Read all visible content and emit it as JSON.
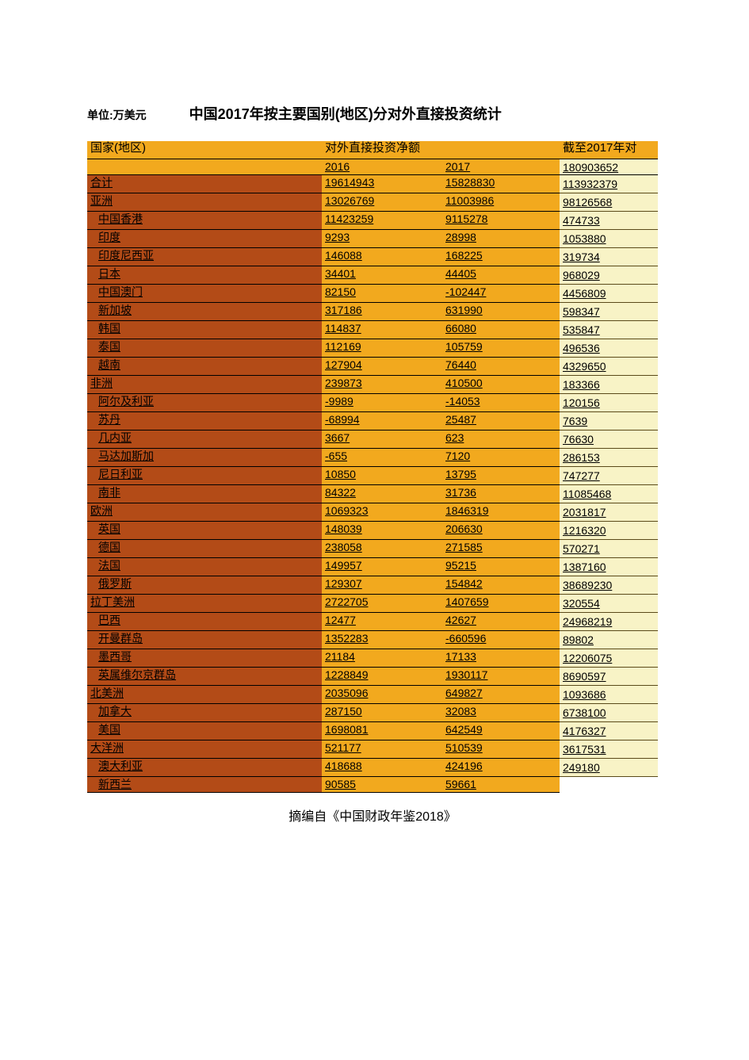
{
  "unit_label": "单位:万美元",
  "title": "中国2017年按主要国别(地区)分对外直接投资统计",
  "source_note": "摘编自《中国财政年鉴2018》",
  "colors": {
    "header_bg": "#f2a91e",
    "country_bg": "#b34b17",
    "value_bg": "#f2a91e",
    "stock_bg": "#f8f3c6",
    "page_bg": "#ffffff",
    "text": "#000000"
  },
  "columns": {
    "country_header": "国家(地区)",
    "net_header": "对外直接投资净额",
    "stock_header": "截至2017年对",
    "year_2016": "2016",
    "year_2017": "2017",
    "first_stock": "180903652"
  },
  "rows": [
    {
      "country": "合计",
      "indent": 0,
      "v2016": "19614943",
      "v2017": "15828830",
      "stock": "113932379"
    },
    {
      "country": "亚洲",
      "indent": 0,
      "v2016": "13026769",
      "v2017": "11003986",
      "stock": "98126568"
    },
    {
      "country": "中国香港",
      "indent": 1,
      "v2016": "11423259",
      "v2017": "9115278",
      "stock": "474733"
    },
    {
      "country": "印度",
      "indent": 1,
      "v2016": "9293",
      "v2017": "28998",
      "stock": "1053880"
    },
    {
      "country": "印度尼西亚",
      "indent": 1,
      "v2016": "146088",
      "v2017": "168225",
      "stock": "319734"
    },
    {
      "country": "日本",
      "indent": 1,
      "v2016": "34401",
      "v2017": "44405",
      "stock": "968029"
    },
    {
      "country": "中国澳门",
      "indent": 1,
      "v2016": "82150",
      "v2017": "-102447",
      "stock": "4456809"
    },
    {
      "country": "新加坡",
      "indent": 1,
      "v2016": "317186",
      "v2017": "631990",
      "stock": "598347"
    },
    {
      "country": "韩国",
      "indent": 1,
      "v2016": "114837",
      "v2017": "66080",
      "stock": "535847"
    },
    {
      "country": "泰国",
      "indent": 1,
      "v2016": "112169",
      "v2017": "105759",
      "stock": "496536"
    },
    {
      "country": "越南",
      "indent": 1,
      "v2016": "127904",
      "v2017": "76440",
      "stock": "4329650"
    },
    {
      "country": "非洲",
      "indent": 0,
      "v2016": "239873",
      "v2017": "410500",
      "stock": "183366"
    },
    {
      "country": "阿尔及利亚",
      "indent": 1,
      "v2016": "-9989",
      "v2017": "-14053",
      "stock": "120156"
    },
    {
      "country": "苏丹",
      "indent": 1,
      "v2016": "-68994",
      "v2017": "25487",
      "stock": "7639"
    },
    {
      "country": "几内亚",
      "indent": 1,
      "v2016": "3667",
      "v2017": "623",
      "stock": "76630"
    },
    {
      "country": "马达加斯加",
      "indent": 1,
      "v2016": "-655",
      "v2017": "7120",
      "stock": "286153"
    },
    {
      "country": "尼日利亚",
      "indent": 1,
      "v2016": "10850",
      "v2017": "13795",
      "stock": "747277"
    },
    {
      "country": "南非",
      "indent": 1,
      "v2016": "84322",
      "v2017": "31736",
      "stock": "11085468"
    },
    {
      "country": "欧洲",
      "indent": 0,
      "v2016": "1069323",
      "v2017": "1846319",
      "stock": "2031817"
    },
    {
      "country": "英国",
      "indent": 1,
      "v2016": "148039",
      "v2017": "206630",
      "stock": "1216320"
    },
    {
      "country": "德国",
      "indent": 1,
      "v2016": "238058",
      "v2017": "271585",
      "stock": "570271"
    },
    {
      "country": "法国",
      "indent": 1,
      "v2016": "149957",
      "v2017": "95215",
      "stock": "1387160"
    },
    {
      "country": "俄罗斯",
      "indent": 1,
      "v2016": "129307",
      "v2017": "154842",
      "stock": "38689230"
    },
    {
      "country": "拉丁美洲",
      "indent": 0,
      "v2016": "2722705",
      "v2017": "1407659",
      "stock": "320554"
    },
    {
      "country": "巴西",
      "indent": 1,
      "v2016": "12477",
      "v2017": "42627",
      "stock": "24968219"
    },
    {
      "country": "开曼群岛",
      "indent": 1,
      "v2016": "1352283",
      "v2017": "-660596",
      "stock": "89802"
    },
    {
      "country": "墨西哥",
      "indent": 1,
      "v2016": "21184",
      "v2017": "17133",
      "stock": "12206075"
    },
    {
      "country": "英属维尔京群岛",
      "indent": 1,
      "v2016": "1228849",
      "v2017": "1930117",
      "stock": "8690597"
    },
    {
      "country": "北美洲",
      "indent": 0,
      "v2016": "2035096",
      "v2017": "649827",
      "stock": "1093686"
    },
    {
      "country": "加拿大",
      "indent": 1,
      "v2016": "287150",
      "v2017": "32083",
      "stock": "6738100"
    },
    {
      "country": "美国",
      "indent": 1,
      "v2016": "1698081",
      "v2017": "642549",
      "stock": "4176327"
    },
    {
      "country": "大洋洲",
      "indent": 0,
      "v2016": "521177",
      "v2017": "510539",
      "stock": "3617531"
    },
    {
      "country": "澳大利亚",
      "indent": 1,
      "v2016": "418688",
      "v2017": "424196",
      "stock": "249180"
    },
    {
      "country": "新西兰",
      "indent": 1,
      "v2016": "90585",
      "v2017": "59661",
      "stock": ""
    }
  ]
}
